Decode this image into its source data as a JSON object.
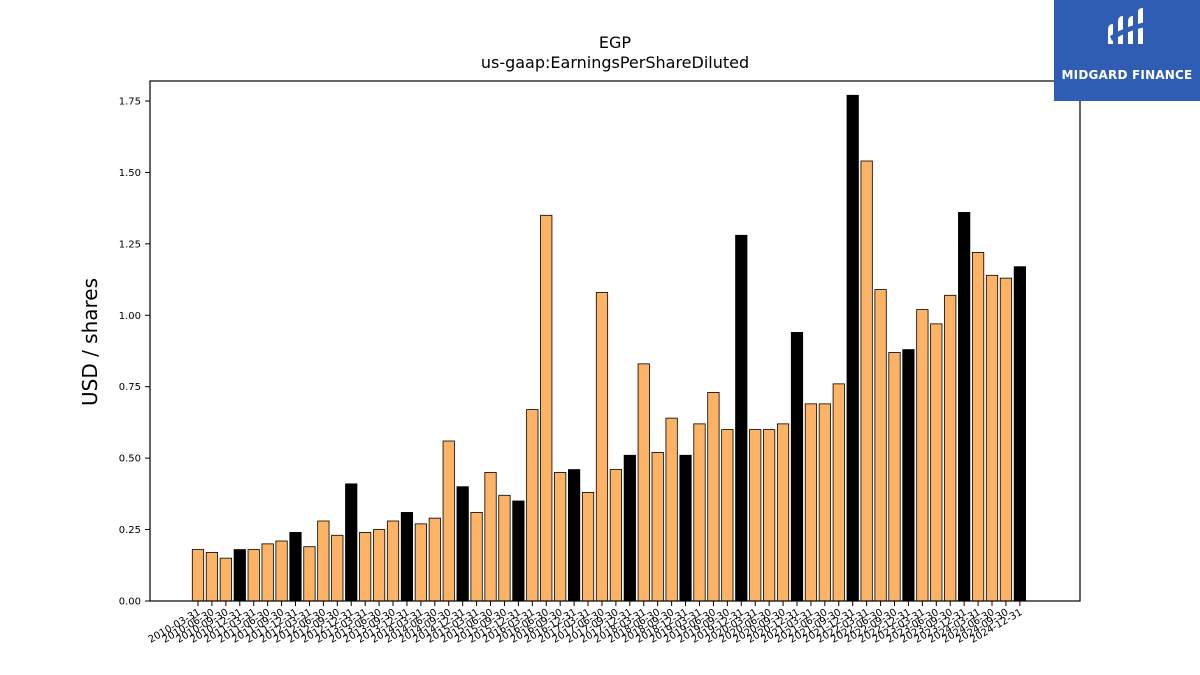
{
  "chart_data": {
    "type": "bar",
    "title": "EGP",
    "subtitle": "us-gaap:EarningsPerShareDiluted",
    "ylabel": "USD / shares",
    "xlabel": "",
    "ylim": [
      0,
      1.82
    ],
    "yticks": [
      "0.00",
      "0.25",
      "0.50",
      "0.75",
      "1.00",
      "1.25",
      "1.50",
      "1.75"
    ],
    "grid": false,
    "colors": {
      "quarter": "#fdb366",
      "year_end": "#000000",
      "edge": "#000000"
    },
    "categories": [
      "2010-03-31",
      "2010-06-30",
      "2010-09-30",
      "2010-12-31",
      "2011-03-31",
      "2011-06-30",
      "2011-09-30",
      "2011-12-31",
      "2012-03-31",
      "2012-06-30",
      "2012-09-30",
      "2012-12-31",
      "2013-03-31",
      "2013-06-30",
      "2013-09-30",
      "2013-12-31",
      "2014-03-31",
      "2014-06-30",
      "2014-09-30",
      "2014-12-31",
      "2015-03-31",
      "2015-06-30",
      "2015-09-30",
      "2015-12-31",
      "2016-03-31",
      "2016-06-30",
      "2016-09-30",
      "2016-12-31",
      "2017-03-31",
      "2017-06-30",
      "2017-09-30",
      "2017-12-31",
      "2018-03-31",
      "2018-06-30",
      "2018-09-30",
      "2018-12-31",
      "2019-03-31",
      "2019-06-30",
      "2019-09-30",
      "2019-12-31",
      "2020-03-31",
      "2020-06-30",
      "2020-09-30",
      "2020-12-31",
      "2021-03-31",
      "2021-06-30",
      "2021-09-30",
      "2021-12-31",
      "2022-03-31",
      "2022-06-30",
      "2022-09-30",
      "2022-12-31",
      "2023-03-31",
      "2023-06-30",
      "2023-09-30",
      "2023-12-31",
      "2024-03-31",
      "2024-06-30",
      "2024-09-30",
      "2024-12-31"
    ],
    "values": [
      0.18,
      0.17,
      0.15,
      0.18,
      0.18,
      0.2,
      0.21,
      0.24,
      0.19,
      0.28,
      0.23,
      0.41,
      0.24,
      0.25,
      0.28,
      0.31,
      0.27,
      0.29,
      0.56,
      0.4,
      0.31,
      0.45,
      0.37,
      0.35,
      0.67,
      1.35,
      0.45,
      0.46,
      0.38,
      1.08,
      0.46,
      0.51,
      0.83,
      0.52,
      0.64,
      0.51,
      0.62,
      0.73,
      0.6,
      1.28,
      0.6,
      0.6,
      0.62,
      0.94,
      0.69,
      0.69,
      0.76,
      1.77,
      1.54,
      1.09,
      0.87,
      0.88,
      1.02,
      0.97,
      1.07,
      1.36,
      1.22,
      1.14,
      1.13,
      1.17
    ],
    "year_end_flags": [
      false,
      false,
      false,
      true,
      false,
      false,
      false,
      true,
      false,
      false,
      false,
      true,
      false,
      false,
      false,
      true,
      false,
      false,
      false,
      true,
      false,
      false,
      false,
      true,
      false,
      false,
      false,
      true,
      false,
      false,
      false,
      true,
      false,
      false,
      false,
      true,
      false,
      false,
      false,
      true,
      false,
      false,
      false,
      true,
      false,
      false,
      false,
      true,
      false,
      false,
      false,
      true,
      false,
      false,
      false,
      true,
      false,
      false,
      false,
      true
    ]
  },
  "logo": {
    "text": "MIDGARD FINANCE",
    "background": "#2f5db4"
  }
}
